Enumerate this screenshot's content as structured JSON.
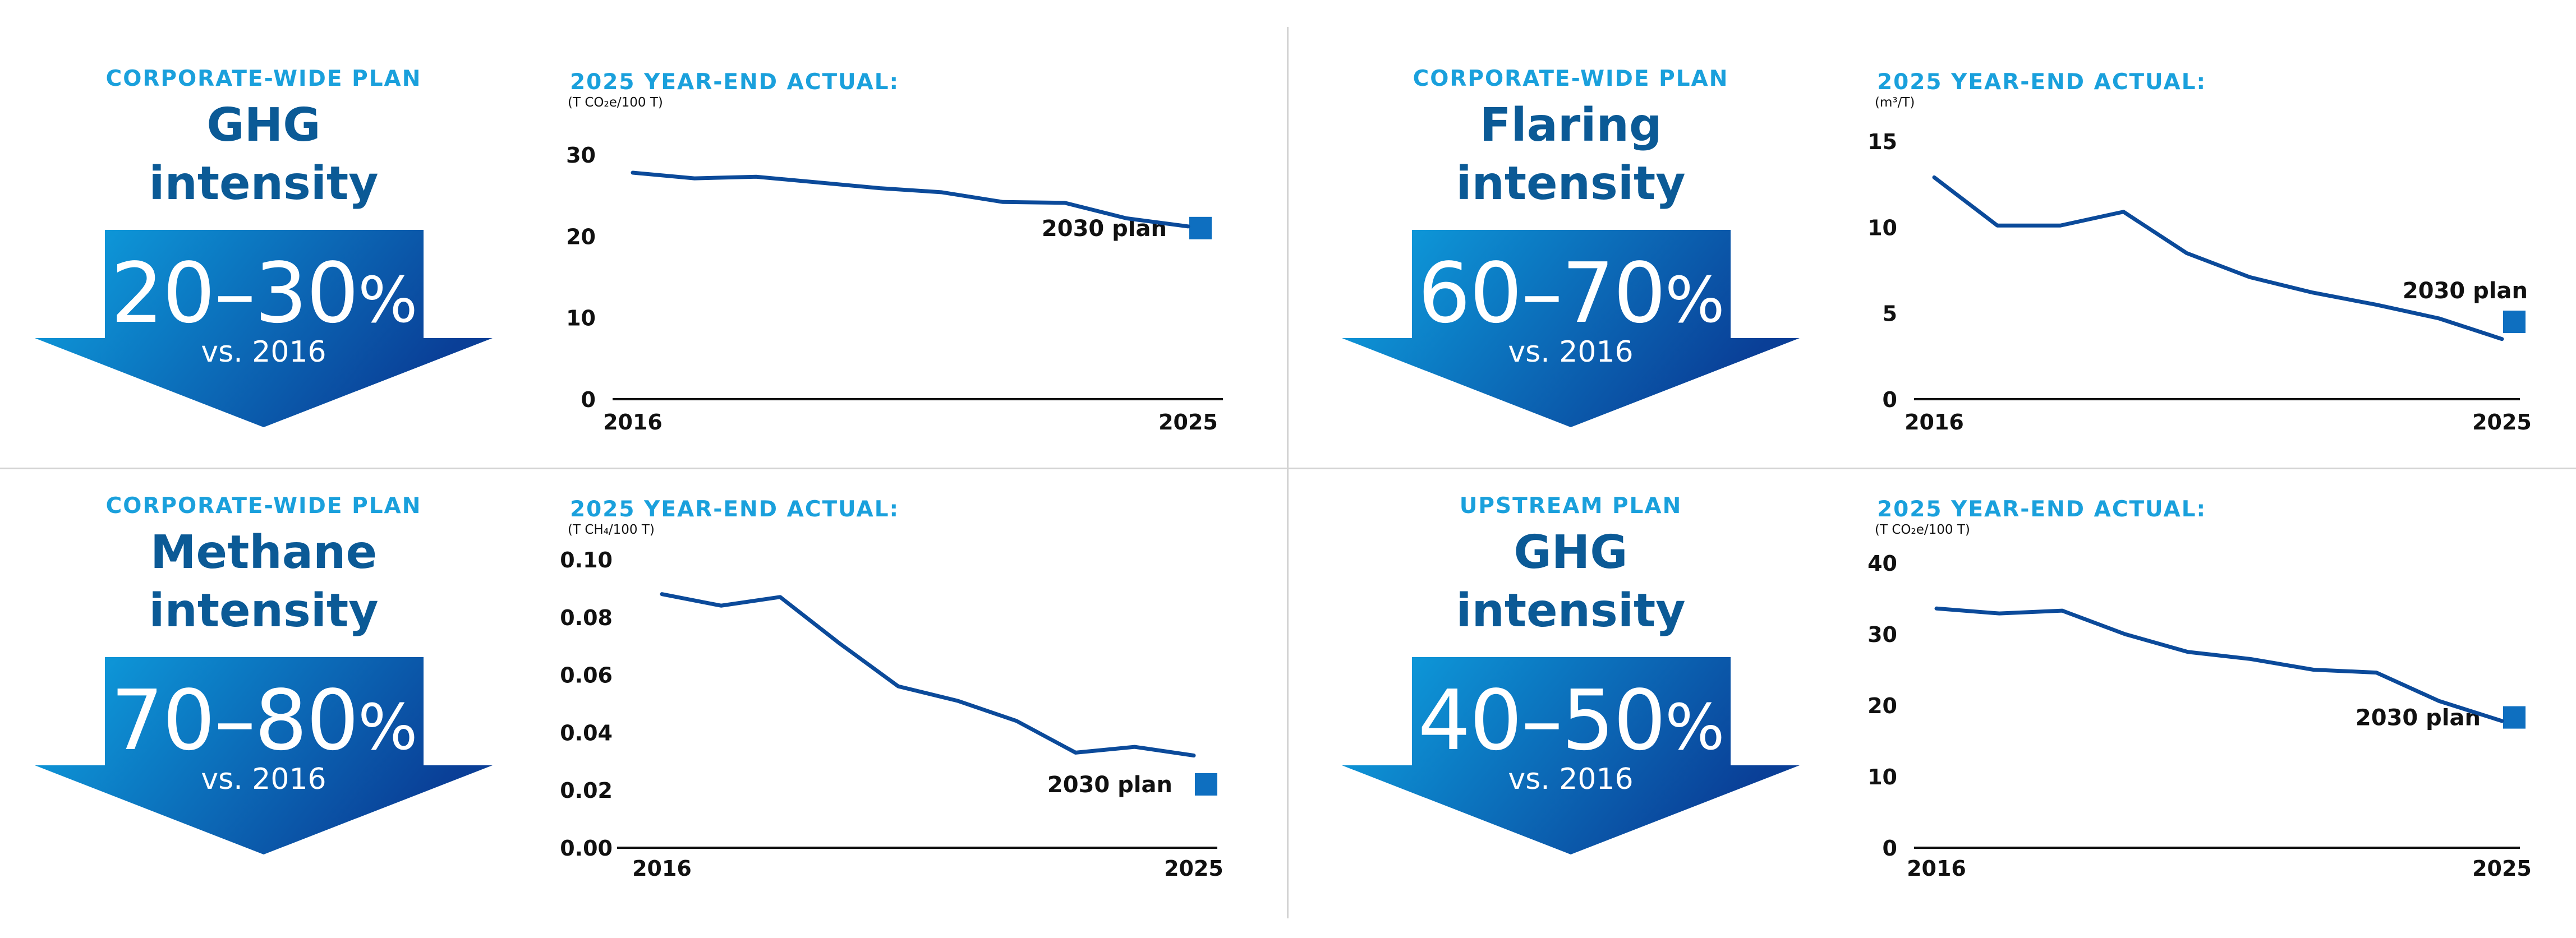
{
  "colors": {
    "line": "#0b4a9a",
    "plan_marker": "#0e6fc0",
    "plan_label": "#1aa0dc",
    "title": "#0b5a96",
    "arrow_light": "#0ea4e2",
    "arrow_dark": "#0a3f97",
    "axis": "#111111"
  },
  "panels": [
    {
      "plan_label": "CORPORATE-WIDE PLAN",
      "title_line1": "GHG",
      "title_line2": "intensity",
      "target": "20–30",
      "pct": "%",
      "vs": "vs. 2016",
      "actual_label": "2025 YEAR-END ACTUAL:",
      "unit": "(T CO₂e/100 T)"
    },
    {
      "plan_label": "CORPORATE-WIDE PLAN",
      "title_line1": "Flaring",
      "title_line2": "intensity",
      "target": "60–70",
      "pct": "%",
      "vs": "vs. 2016",
      "actual_label": "2025 YEAR-END ACTUAL:",
      "unit": "(m³/T)"
    },
    {
      "plan_label": "CORPORATE-WIDE PLAN",
      "title_line1": "Methane",
      "title_line2": "intensity",
      "target": "70–80",
      "pct": "%",
      "vs": "vs. 2016",
      "actual_label": "2025 YEAR-END ACTUAL:",
      "unit": "(T CH₄/100 T)"
    },
    {
      "plan_label": "UPSTREAM PLAN",
      "title_line1": "GHG",
      "title_line2": "intensity",
      "target": "40–50",
      "pct": "%",
      "vs": "vs. 2016",
      "actual_label": "2025 YEAR-END ACTUAL:",
      "unit": "(T CO₂e/100 T)"
    }
  ],
  "chart_data": [
    {
      "type": "line",
      "title": "",
      "xlabel": "",
      "ylabel": "",
      "x": [
        2016,
        2017,
        2018,
        2019,
        2020,
        2021,
        2022,
        2023,
        2024,
        2025
      ],
      "x_tick_labels": [
        "2016",
        "2025"
      ],
      "series": [
        {
          "values": [
            27.8,
            27.1,
            27.3,
            26.6,
            25.9,
            25.4,
            24.2,
            24.1,
            22.2,
            21.2
          ]
        }
      ],
      "plan_point": {
        "x": 2025,
        "value": 21,
        "label": "2030 plan"
      },
      "yticks": [
        0,
        10,
        20,
        30
      ],
      "ylim": [
        0,
        30
      ]
    },
    {
      "type": "line",
      "title": "",
      "xlabel": "",
      "ylabel": "",
      "x": [
        2016,
        2017,
        2018,
        2019,
        2020,
        2021,
        2022,
        2023,
        2024,
        2025
      ],
      "x_tick_labels": [
        "2016",
        "2025"
      ],
      "series": [
        {
          "values": [
            12.9,
            10.1,
            10.1,
            10.9,
            8.5,
            7.1,
            6.2,
            5.5,
            4.7,
            3.5
          ]
        }
      ],
      "plan_point": {
        "x": 2025,
        "value": 4.5,
        "label": "2030 plan"
      },
      "yticks": [
        0,
        5,
        10,
        15
      ],
      "ylim": [
        0,
        15
      ]
    },
    {
      "type": "line",
      "title": "",
      "xlabel": "",
      "ylabel": "",
      "x": [
        2016,
        2017,
        2018,
        2019,
        2020,
        2021,
        2022,
        2023,
        2024,
        2025
      ],
      "x_tick_labels": [
        "2016",
        "2025"
      ],
      "series": [
        {
          "values": [
            0.088,
            0.084,
            0.087,
            0.071,
            0.056,
            0.051,
            0.044,
            0.033,
            0.035,
            0.032
          ]
        }
      ],
      "plan_point": {
        "x": 2025,
        "value": 0.022,
        "label": "2030 plan"
      },
      "yticks": [
        0.0,
        0.02,
        0.04,
        0.06,
        0.08,
        0.1
      ],
      "ytick_labels": [
        "0.00",
        "0.02",
        "0.04",
        "0.06",
        "0.08",
        "0.10"
      ],
      "ylim": [
        0,
        0.1
      ]
    },
    {
      "type": "line",
      "title": "",
      "xlabel": "",
      "ylabel": "",
      "x": [
        2016,
        2017,
        2018,
        2019,
        2020,
        2021,
        2022,
        2023,
        2024,
        2025
      ],
      "x_tick_labels": [
        "2016",
        "2025"
      ],
      "series": [
        {
          "values": [
            33.6,
            32.9,
            33.3,
            30.0,
            27.5,
            26.5,
            25.0,
            24.6,
            20.6,
            17.8
          ]
        }
      ],
      "plan_point": {
        "x": 2025,
        "value": 18.3,
        "label": "2030 plan"
      },
      "yticks": [
        0,
        10,
        20,
        30,
        40
      ],
      "ylim": [
        0,
        40
      ]
    }
  ]
}
